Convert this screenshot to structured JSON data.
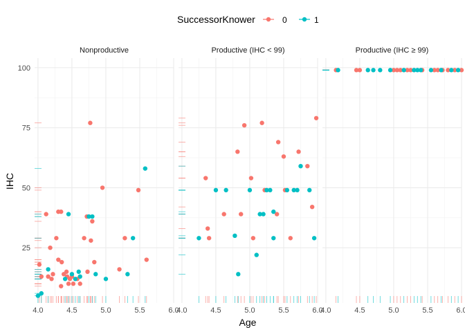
{
  "chart_data": {
    "type": "scatter",
    "xlabel": "Age",
    "ylabel": "IHC",
    "legend": {
      "title": "SuccessorKnower",
      "position": "top",
      "entries": [
        "0",
        "1"
      ]
    },
    "colors": {
      "0": "#F8766D",
      "1": "#00BFC4"
    },
    "xlim": [
      3.95,
      6.0
    ],
    "ylim": [
      2,
      104
    ],
    "xticks": [
      4.0,
      4.5,
      5.0,
      5.5,
      6.0
    ],
    "xtick_labels": [
      "4.0",
      "4.5",
      "5.0",
      "5.5",
      "6.0"
    ],
    "yticks": [
      25,
      50,
      75,
      100
    ],
    "ytick_labels": [
      "25",
      "50",
      "75",
      "100"
    ],
    "grid": true,
    "rug": true,
    "panels": [
      {
        "title": "Nonproductive",
        "points": [
          [
            4.02,
            18,
            0
          ],
          [
            4.05,
            13,
            0
          ],
          [
            4.12,
            39,
            0
          ],
          [
            4.15,
            13,
            0
          ],
          [
            4.18,
            25,
            0
          ],
          [
            4.2,
            12,
            0
          ],
          [
            4.22,
            14,
            0
          ],
          [
            4.27,
            29,
            0
          ],
          [
            4.3,
            40,
            0
          ],
          [
            4.3,
            20,
            0
          ],
          [
            4.34,
            40,
            0
          ],
          [
            4.34,
            9,
            0
          ],
          [
            4.35,
            19,
            0
          ],
          [
            4.38,
            14,
            0
          ],
          [
            4.42,
            15,
            0
          ],
          [
            4.43,
            13,
            0
          ],
          [
            4.45,
            10,
            0
          ],
          [
            4.47,
            12,
            0
          ],
          [
            4.5,
            13,
            0
          ],
          [
            4.52,
            10,
            0
          ],
          [
            4.58,
            12,
            0
          ],
          [
            4.62,
            10,
            0
          ],
          [
            4.68,
            29,
            0
          ],
          [
            4.72,
            38,
            0
          ],
          [
            4.73,
            15,
            0
          ],
          [
            4.77,
            77,
            0
          ],
          [
            4.78,
            28,
            0
          ],
          [
            4.8,
            36,
            0
          ],
          [
            4.83,
            19,
            0
          ],
          [
            4.95,
            50,
            0
          ],
          [
            5.2,
            16,
            0
          ],
          [
            5.28,
            29,
            0
          ],
          [
            5.48,
            49,
            0
          ],
          [
            5.6,
            20,
            0
          ],
          [
            4.0,
            5,
            1
          ],
          [
            4.05,
            6,
            1
          ],
          [
            4.15,
            16,
            1
          ],
          [
            4.4,
            12,
            1
          ],
          [
            4.45,
            39,
            1
          ],
          [
            4.5,
            14,
            1
          ],
          [
            4.55,
            12,
            1
          ],
          [
            4.6,
            15,
            1
          ],
          [
            4.62,
            13,
            1
          ],
          [
            4.75,
            38,
            1
          ],
          [
            4.8,
            38,
            1
          ],
          [
            4.85,
            14,
            1
          ],
          [
            5.0,
            12,
            1
          ],
          [
            5.32,
            14,
            1
          ],
          [
            5.4,
            29,
            1
          ],
          [
            5.58,
            58,
            1
          ]
        ]
      },
      {
        "title": "Productive (IHC < 99)",
        "points": [
          [
            4.35,
            54,
            0
          ],
          [
            4.38,
            33,
            0
          ],
          [
            4.4,
            29,
            0
          ],
          [
            4.62,
            39,
            0
          ],
          [
            4.82,
            65,
            0
          ],
          [
            4.87,
            39,
            0
          ],
          [
            4.92,
            76,
            0
          ],
          [
            5.02,
            54,
            0
          ],
          [
            5.05,
            29,
            0
          ],
          [
            5.18,
            77,
            0
          ],
          [
            5.22,
            49,
            0
          ],
          [
            5.42,
            69,
            0
          ],
          [
            5.5,
            63,
            0
          ],
          [
            5.52,
            49,
            0
          ],
          [
            5.4,
            39,
            0
          ],
          [
            5.6,
            29,
            0
          ],
          [
            5.72,
            65,
            0
          ],
          [
            5.85,
            59,
            0
          ],
          [
            5.92,
            42,
            0
          ],
          [
            5.98,
            79,
            0
          ],
          [
            4.25,
            29,
            1
          ],
          [
            4.5,
            49,
            1
          ],
          [
            4.65,
            49,
            1
          ],
          [
            4.78,
            30,
            1
          ],
          [
            4.83,
            14,
            1
          ],
          [
            5.0,
            49,
            1
          ],
          [
            5.1,
            22,
            1
          ],
          [
            5.15,
            39,
            1
          ],
          [
            5.2,
            39,
            1
          ],
          [
            5.25,
            49,
            1
          ],
          [
            5.3,
            49,
            1
          ],
          [
            5.35,
            40,
            1
          ],
          [
            5.35,
            29,
            1
          ],
          [
            5.55,
            49,
            1
          ],
          [
            5.65,
            49,
            1
          ],
          [
            5.7,
            49,
            1
          ],
          [
            5.75,
            59,
            1
          ],
          [
            5.88,
            49,
            1
          ],
          [
            5.95,
            29,
            1
          ]
        ]
      },
      {
        "title": "Productive (IHC ≥ 99)",
        "points": [
          [
            4.15,
            99,
            0
          ],
          [
            4.45,
            99,
            0
          ],
          [
            4.5,
            99,
            0
          ],
          [
            5.0,
            99,
            0
          ],
          [
            5.05,
            99,
            0
          ],
          [
            5.1,
            99,
            0
          ],
          [
            5.2,
            99,
            0
          ],
          [
            5.25,
            99,
            0
          ],
          [
            5.42,
            99,
            0
          ],
          [
            5.6,
            99,
            0
          ],
          [
            5.65,
            99,
            0
          ],
          [
            5.72,
            99,
            0
          ],
          [
            5.8,
            99,
            0
          ],
          [
            5.9,
            99,
            0
          ],
          [
            6.0,
            99,
            0
          ],
          [
            4.18,
            99,
            1
          ],
          [
            4.62,
            99,
            1
          ],
          [
            4.7,
            99,
            1
          ],
          [
            4.8,
            99,
            1
          ],
          [
            4.95,
            99,
            1
          ],
          [
            5.15,
            99,
            1
          ],
          [
            5.3,
            99,
            1
          ],
          [
            5.35,
            99,
            1
          ],
          [
            5.4,
            99,
            1
          ],
          [
            5.55,
            99,
            1
          ],
          [
            5.7,
            99,
            1
          ],
          [
            5.85,
            99,
            1
          ],
          [
            5.95,
            99,
            1
          ]
        ]
      }
    ]
  }
}
